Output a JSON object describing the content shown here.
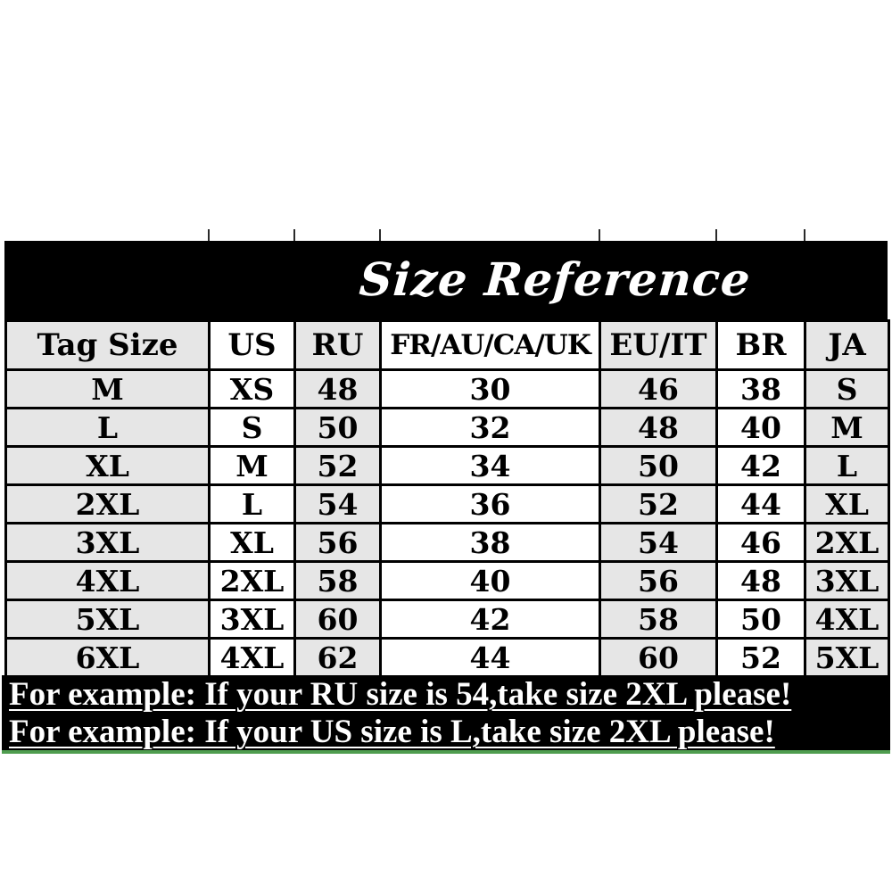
{
  "title": "Size Reference",
  "table": {
    "headers": [
      "Tag Size",
      "US",
      "RU",
      "FR/AU/CA/UK",
      "EU/IT",
      "BR",
      "JA"
    ],
    "rows": [
      [
        "M",
        "XS",
        "48",
        "30",
        "46",
        "38",
        "S"
      ],
      [
        "L",
        "S",
        "50",
        "32",
        "48",
        "40",
        "M"
      ],
      [
        "XL",
        "M",
        "52",
        "34",
        "50",
        "42",
        "L"
      ],
      [
        "2XL",
        "L",
        "54",
        "36",
        "52",
        "44",
        "XL"
      ],
      [
        "3XL",
        "XL",
        "56",
        "38",
        "54",
        "46",
        "2XL"
      ],
      [
        "4XL",
        "2XL",
        "58",
        "40",
        "56",
        "48",
        "3XL"
      ],
      [
        "5XL",
        "3XL",
        "60",
        "42",
        "58",
        "50",
        "4XL"
      ],
      [
        "6XL",
        "4XL",
        "62",
        "44",
        "60",
        "52",
        "5XL"
      ]
    ]
  },
  "notes": [
    "For example: If your RU size is 54,take size 2XL please!",
    "For example: If your US size is L,take size 2XL please!"
  ],
  "colors": {
    "banner_bg": "#000000",
    "banner_text": "#ffffff",
    "cell_shaded": "#e6e6e6",
    "cell_plain": "#ffffff",
    "cell_border": "#000000",
    "note_bg": "#000000",
    "note_text": "#ffffff",
    "accent_green": "#4f9d4f"
  }
}
